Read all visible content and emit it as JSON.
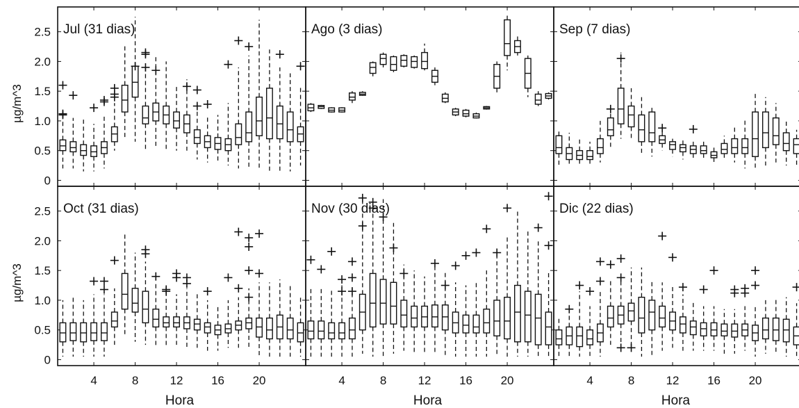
{
  "chart_data": {
    "type": "box",
    "layout": "2 rows x 3 columns small multiples, shared axes",
    "xlabel": "Hora",
    "ylabel": "µg/m^3",
    "xlim": [
      0.5,
      24.5
    ],
    "ylim": [
      -0.1,
      2.8
    ],
    "xticks": [
      4,
      8,
      12,
      16,
      20
    ],
    "yticks": [
      0,
      0.5,
      1.0,
      1.5,
      2.0,
      2.5
    ],
    "ytick_labels": [
      "0",
      "0.5",
      "1.0",
      "1.5",
      "2.0",
      "2.5"
    ],
    "hours": [
      1,
      2,
      3,
      4,
      5,
      6,
      7,
      8,
      9,
      10,
      11,
      12,
      13,
      14,
      15,
      16,
      17,
      18,
      19,
      20,
      21,
      22,
      23,
      24
    ],
    "colors": {
      "box": "#111111",
      "background": "#ffffff"
    },
    "panels": [
      {
        "title": "Jul (31 dias)",
        "q1": [
          0.5,
          0.48,
          0.42,
          0.4,
          0.45,
          0.65,
          1.15,
          1.4,
          0.95,
          1.0,
          0.95,
          0.88,
          0.8,
          0.62,
          0.55,
          0.52,
          0.5,
          0.6,
          0.65,
          0.75,
          0.7,
          0.7,
          0.65,
          0.65
        ],
        "median": [
          0.58,
          0.55,
          0.5,
          0.48,
          0.55,
          0.78,
          1.35,
          1.65,
          1.05,
          1.15,
          1.1,
          1.0,
          0.95,
          0.72,
          0.65,
          0.62,
          0.6,
          0.72,
          0.8,
          1.0,
          1.05,
          0.95,
          0.85,
          0.78
        ],
        "q3": [
          0.68,
          0.65,
          0.6,
          0.58,
          0.65,
          0.9,
          1.6,
          1.92,
          1.25,
          1.3,
          1.25,
          1.15,
          1.1,
          0.85,
          0.75,
          0.72,
          0.7,
          0.95,
          1.15,
          1.4,
          1.55,
          1.25,
          1.15,
          0.9
        ],
        "wlow": [
          0.2,
          0.2,
          0.15,
          0.15,
          0.2,
          0.5,
          0.7,
          0.65,
          0.5,
          0.55,
          0.5,
          0.5,
          0.5,
          0.35,
          0.3,
          0.3,
          0.25,
          0.2,
          0.2,
          0.2,
          0.15,
          0.15,
          0.15,
          0.25
        ],
        "whigh": [
          1.0,
          1.05,
          1.05,
          0.95,
          1.1,
          1.3,
          2.3,
          2.75,
          1.9,
          2.1,
          2.0,
          1.6,
          1.7,
          1.3,
          1.1,
          1.1,
          1.3,
          1.9,
          2.1,
          2.7,
          2.2,
          1.9,
          1.8,
          1.6
        ],
        "outliers": [
          [
            1,
            1.6
          ],
          [
            1,
            1.1
          ],
          [
            1,
            1.12
          ],
          [
            2,
            1.43
          ],
          [
            4,
            1.22
          ],
          [
            5,
            1.35
          ],
          [
            5,
            1.32
          ],
          [
            6,
            1.55
          ],
          [
            6,
            1.45
          ],
          [
            6,
            1.4
          ],
          [
            8,
            1.92
          ],
          [
            9,
            2.12
          ],
          [
            9,
            2.15
          ],
          [
            9,
            1.9
          ],
          [
            10,
            1.85
          ],
          [
            13,
            1.58
          ],
          [
            14,
            1.52
          ],
          [
            14,
            1.25
          ],
          [
            15,
            1.28
          ],
          [
            17,
            1.95
          ],
          [
            18,
            2.35
          ],
          [
            19,
            2.25
          ],
          [
            22,
            2.12
          ],
          [
            24,
            1.92
          ]
        ]
      },
      {
        "title": "Ago (3 dias)",
        "q1": [
          1.17,
          1.21,
          1.15,
          1.15,
          1.35,
          1.43,
          1.8,
          1.95,
          1.85,
          1.92,
          1.9,
          1.88,
          1.65,
          1.32,
          1.1,
          1.08,
          1.05,
          1.2,
          1.55,
          2.1,
          2.15,
          1.55,
          1.28,
          1.38
        ],
        "median": [
          1.22,
          1.24,
          1.18,
          1.18,
          1.4,
          1.45,
          1.9,
          2.05,
          1.95,
          2.02,
          2.0,
          2.0,
          1.75,
          1.38,
          1.15,
          1.12,
          1.08,
          1.22,
          1.75,
          2.3,
          2.25,
          1.8,
          1.35,
          1.42
        ],
        "q3": [
          1.28,
          1.26,
          1.22,
          1.22,
          1.47,
          1.48,
          1.98,
          2.12,
          2.08,
          2.1,
          2.08,
          2.15,
          1.85,
          1.45,
          1.2,
          1.18,
          1.12,
          1.24,
          1.95,
          2.7,
          2.35,
          2.05,
          1.45,
          1.46
        ],
        "wlow": [
          1.15,
          1.2,
          1.14,
          1.14,
          1.3,
          1.42,
          1.75,
          1.9,
          1.82,
          1.9,
          1.88,
          1.85,
          1.6,
          1.3,
          1.08,
          1.06,
          1.04,
          1.19,
          1.45,
          1.85,
          2.1,
          1.4,
          1.25,
          1.36
        ],
        "whigh": [
          1.3,
          1.27,
          1.23,
          1.23,
          1.5,
          1.5,
          2.0,
          2.15,
          2.1,
          2.12,
          2.1,
          2.3,
          1.9,
          1.48,
          1.22,
          1.2,
          1.14,
          1.25,
          2.0,
          2.8,
          2.45,
          2.1,
          1.5,
          1.48
        ],
        "outliers": []
      },
      {
        "title": "Sep (7 dias)",
        "q1": [
          0.45,
          0.35,
          0.35,
          0.35,
          0.45,
          0.75,
          0.95,
          0.9,
          0.65,
          0.65,
          0.62,
          0.52,
          0.48,
          0.45,
          0.45,
          0.38,
          0.45,
          0.45,
          0.45,
          0.4,
          0.55,
          0.6,
          0.5,
          0.45
        ],
        "median": [
          0.55,
          0.45,
          0.42,
          0.4,
          0.55,
          0.85,
          1.2,
          1.1,
          0.85,
          0.8,
          0.68,
          0.6,
          0.55,
          0.52,
          0.5,
          0.42,
          0.52,
          0.55,
          0.55,
          0.7,
          0.8,
          0.75,
          0.62,
          0.6
        ],
        "q3": [
          0.75,
          0.55,
          0.5,
          0.5,
          0.7,
          1.05,
          1.55,
          1.25,
          1.1,
          1.15,
          0.75,
          0.65,
          0.6,
          0.58,
          0.58,
          0.48,
          0.62,
          0.7,
          0.7,
          1.15,
          1.15,
          1.05,
          0.8,
          0.7
        ],
        "wlow": [
          0.25,
          0.25,
          0.25,
          0.25,
          0.3,
          0.55,
          0.7,
          0.7,
          0.45,
          0.4,
          0.5,
          0.4,
          0.35,
          0.35,
          0.35,
          0.3,
          0.35,
          0.3,
          0.2,
          0.2,
          0.25,
          0.3,
          0.25,
          0.25
        ],
        "whigh": [
          0.85,
          0.8,
          0.7,
          0.65,
          1.0,
          1.25,
          2.15,
          1.55,
          1.4,
          1.25,
          0.85,
          0.7,
          0.7,
          0.65,
          0.65,
          0.55,
          0.75,
          0.9,
          1.05,
          1.5,
          1.4,
          1.3,
          1.0,
          0.85
        ],
        "outliers": [
          [
            6,
            1.2
          ],
          [
            7,
            2.05
          ],
          [
            11,
            0.88
          ],
          [
            14,
            0.86
          ]
        ]
      },
      {
        "title": "Oct (31 dias)",
        "q1": [
          0.3,
          0.32,
          0.3,
          0.32,
          0.32,
          0.55,
          0.85,
          0.8,
          0.62,
          0.55,
          0.55,
          0.55,
          0.52,
          0.5,
          0.45,
          0.42,
          0.45,
          0.5,
          0.52,
          0.38,
          0.35,
          0.35,
          0.35,
          0.3
        ],
        "median": [
          0.45,
          0.45,
          0.45,
          0.45,
          0.45,
          0.65,
          1.1,
          0.95,
          0.85,
          0.68,
          0.62,
          0.62,
          0.62,
          0.6,
          0.55,
          0.5,
          0.52,
          0.58,
          0.62,
          0.55,
          0.5,
          0.55,
          0.5,
          0.45
        ],
        "q3": [
          0.62,
          0.62,
          0.62,
          0.62,
          0.62,
          0.8,
          1.45,
          1.2,
          1.15,
          0.85,
          0.72,
          0.72,
          0.72,
          0.68,
          0.62,
          0.58,
          0.6,
          0.65,
          0.7,
          0.7,
          0.7,
          0.75,
          0.7,
          0.62
        ],
        "wlow": [
          0.05,
          0.05,
          0.05,
          0.05,
          0.05,
          0.25,
          0.4,
          0.3,
          0.25,
          0.2,
          0.2,
          0.25,
          0.2,
          0.2,
          0.15,
          0.15,
          0.2,
          0.2,
          0.2,
          0.05,
          0.05,
          0.05,
          0.05,
          0.05
        ],
        "whigh": [
          1.0,
          1.05,
          1.0,
          1.1,
          1.1,
          1.2,
          2.15,
          1.8,
          1.65,
          1.3,
          1.1,
          1.1,
          1.2,
          1.1,
          1.0,
          0.9,
          1.0,
          1.05,
          1.2,
          1.3,
          1.3,
          1.35,
          1.25,
          1.05
        ],
        "outliers": [
          [
            4,
            1.32
          ],
          [
            5,
            1.32
          ],
          [
            5,
            1.18
          ],
          [
            6,
            1.67
          ],
          [
            9,
            1.78
          ],
          [
            9,
            1.85
          ],
          [
            10,
            1.4
          ],
          [
            11,
            1.15
          ],
          [
            11,
            1.18
          ],
          [
            12,
            1.38
          ],
          [
            12,
            1.45
          ],
          [
            13,
            1.28
          ],
          [
            13,
            1.38
          ],
          [
            15,
            1.15
          ],
          [
            17,
            1.38
          ],
          [
            18,
            2.15
          ],
          [
            18,
            1.2
          ],
          [
            19,
            2.05
          ],
          [
            19,
            1.9
          ],
          [
            19,
            1.5
          ],
          [
            19,
            1.05
          ],
          [
            20,
            2.12
          ],
          [
            20,
            1.45
          ]
        ]
      },
      {
        "title": "Nov (30 dias)",
        "q1": [
          0.35,
          0.35,
          0.35,
          0.35,
          0.35,
          0.5,
          0.55,
          0.6,
          0.6,
          0.55,
          0.55,
          0.55,
          0.55,
          0.5,
          0.45,
          0.45,
          0.45,
          0.45,
          0.4,
          0.35,
          0.3,
          0.3,
          0.25,
          0.25
        ],
        "median": [
          0.48,
          0.48,
          0.45,
          0.45,
          0.5,
          0.8,
          0.95,
          0.95,
          0.9,
          0.75,
          0.7,
          0.72,
          0.72,
          0.72,
          0.62,
          0.58,
          0.55,
          0.62,
          0.65,
          0.65,
          0.8,
          0.75,
          0.7,
          0.55
        ],
        "q3": [
          0.65,
          0.65,
          0.62,
          0.62,
          0.7,
          1.1,
          1.45,
          1.35,
          1.3,
          1.0,
          0.9,
          0.9,
          0.92,
          0.92,
          0.8,
          0.75,
          0.75,
          0.85,
          1.0,
          1.05,
          1.25,
          1.15,
          1.1,
          0.8
        ],
        "wlow": [
          0.05,
          0.05,
          0.05,
          0.05,
          0.05,
          0.1,
          0.05,
          0.05,
          0.1,
          0.15,
          0.1,
          0.1,
          0.1,
          0.05,
          0.05,
          0.05,
          0.05,
          0.05,
          0.05,
          0.05,
          0.05,
          0.05,
          0.05,
          0.05
        ],
        "whigh": [
          1.2,
          1.2,
          1.2,
          1.25,
          1.2,
          2.7,
          2.7,
          2.7,
          2.3,
          1.6,
          1.5,
          1.4,
          1.55,
          1.5,
          1.3,
          1.25,
          1.3,
          1.5,
          1.8,
          2.1,
          2.5,
          2.2,
          2.0,
          1.5
        ],
        "outliers": [
          [
            1,
            1.68
          ],
          [
            2,
            1.52
          ],
          [
            3,
            1.82
          ],
          [
            4,
            1.15
          ],
          [
            4,
            1.35
          ],
          [
            5,
            1.65
          ],
          [
            5,
            1.15
          ],
          [
            5,
            1.38
          ],
          [
            6,
            2.25
          ],
          [
            6,
            2.72
          ],
          [
            7,
            2.55
          ],
          [
            7,
            2.65
          ],
          [
            8,
            2.4
          ],
          [
            9,
            1.88
          ],
          [
            10,
            1.45
          ],
          [
            13,
            1.62
          ],
          [
            14,
            1.25
          ],
          [
            15,
            1.58
          ],
          [
            16,
            1.75
          ],
          [
            17,
            1.8
          ],
          [
            18,
            2.2
          ],
          [
            19,
            1.8
          ],
          [
            20,
            2.55
          ],
          [
            23,
            2.22
          ],
          [
            24,
            1.92
          ],
          [
            24,
            2.75
          ]
        ]
      },
      {
        "title": "Dic (22 dias)",
        "q1": [
          0.25,
          0.25,
          0.22,
          0.25,
          0.3,
          0.55,
          0.6,
          0.65,
          0.45,
          0.5,
          0.55,
          0.5,
          0.45,
          0.42,
          0.4,
          0.4,
          0.4,
          0.38,
          0.4,
          0.32,
          0.35,
          0.32,
          0.3,
          0.25
        ],
        "median": [
          0.35,
          0.4,
          0.4,
          0.35,
          0.45,
          0.7,
          0.75,
          0.82,
          0.7,
          0.8,
          0.7,
          0.65,
          0.6,
          0.55,
          0.52,
          0.5,
          0.48,
          0.48,
          0.5,
          0.45,
          0.5,
          0.5,
          0.5,
          0.4
        ],
        "q3": [
          0.5,
          0.55,
          0.55,
          0.5,
          0.6,
          0.9,
          0.9,
          0.95,
          1.05,
          1.0,
          0.9,
          0.8,
          0.72,
          0.65,
          0.62,
          0.62,
          0.6,
          0.6,
          0.6,
          0.58,
          0.7,
          0.7,
          0.68,
          0.55
        ],
        "wlow": [
          0.05,
          0.05,
          0.05,
          0.05,
          0.05,
          0.25,
          0.2,
          0.2,
          0.05,
          0.05,
          0.15,
          0.2,
          0.15,
          0.15,
          0.15,
          0.15,
          0.1,
          0.1,
          0.15,
          0.05,
          0.1,
          0.1,
          0.05,
          0.05
        ],
        "whigh": [
          0.7,
          0.9,
          1.15,
          0.9,
          1.15,
          1.35,
          1.45,
          1.55,
          1.55,
          1.35,
          1.3,
          1.25,
          1.1,
          1.0,
          0.9,
          0.9,
          0.85,
          0.85,
          0.9,
          0.9,
          1.0,
          1.05,
          1.05,
          0.95
        ],
        "outliers": [
          [
            2,
            0.85
          ],
          [
            3,
            1.25
          ],
          [
            4,
            1.15
          ],
          [
            5,
            1.32
          ],
          [
            5,
            1.65
          ],
          [
            6,
            1.6
          ],
          [
            7,
            1.7
          ],
          [
            7,
            1.38
          ],
          [
            7,
            0.2
          ],
          [
            8,
            0.2
          ],
          [
            11,
            2.08
          ],
          [
            12,
            1.72
          ],
          [
            13,
            1.22
          ],
          [
            15,
            1.18
          ],
          [
            16,
            1.5
          ],
          [
            18,
            1.18
          ],
          [
            18,
            1.12
          ],
          [
            19,
            1.12
          ],
          [
            19,
            1.2
          ],
          [
            20,
            1.5
          ],
          [
            20,
            1.25
          ],
          [
            24,
            1.22
          ]
        ]
      }
    ]
  }
}
